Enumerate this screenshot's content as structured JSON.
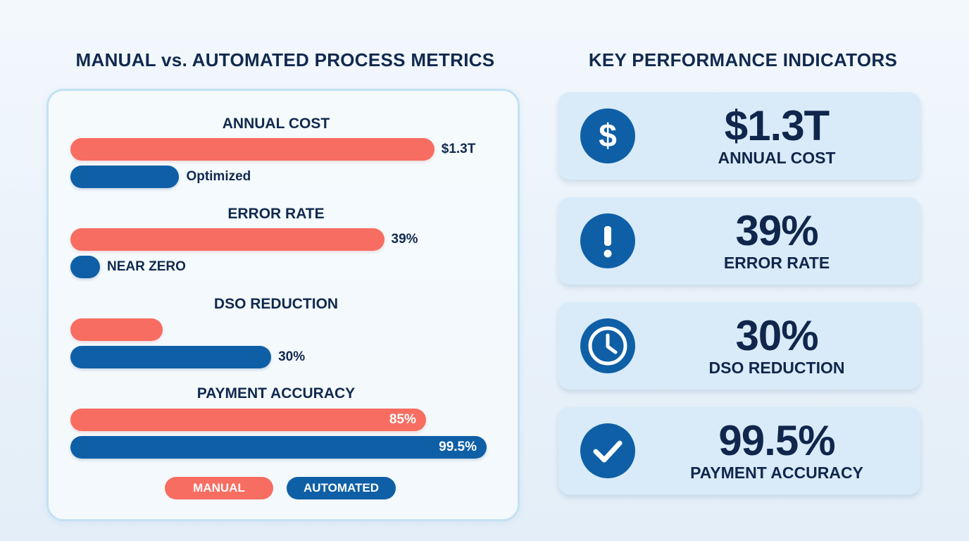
{
  "left_title": "MANUAL vs. AUTOMATED PROCESS METRICS",
  "right_title": "KEY PERFORMANCE INDICATORS",
  "chart_data": {
    "type": "bar",
    "orientation": "horizontal",
    "title": "MANUAL vs. AUTOMATED PROCESS METRICS",
    "categories": [
      "ANNUAL COST",
      "ERROR RATE",
      "DSO REDUCTION",
      "PAYMENT ACCURACY"
    ],
    "series": [
      {
        "name": "MANUAL",
        "color": "#f86d61",
        "values": [
          87,
          75,
          22,
          85
        ],
        "labels": [
          "$1.3T",
          "39%",
          "",
          "85%"
        ]
      },
      {
        "name": "AUTOMATED",
        "color": "#0e5fa6",
        "values": [
          26,
          7,
          48,
          99.5
        ],
        "labels": [
          "Optimized",
          "NEAR ZERO",
          "30%",
          "99.5%"
        ]
      }
    ],
    "xlim": [
      0,
      100
    ],
    "grid": false,
    "legend_position": "bottom"
  },
  "legend": {
    "manual": "MANUAL",
    "automated": "AUTOMATED"
  },
  "kpis": [
    {
      "icon": "dollar-icon",
      "value": "$1.3T",
      "label": "ANNUAL COST"
    },
    {
      "icon": "exclamation-icon",
      "value": "39%",
      "label": "ERROR RATE"
    },
    {
      "icon": "clock-icon",
      "value": "30%",
      "label": "DSO REDUCTION"
    },
    {
      "icon": "checkmark-icon",
      "value": "99.5%",
      "label": "PAYMENT ACCURACY"
    }
  ]
}
